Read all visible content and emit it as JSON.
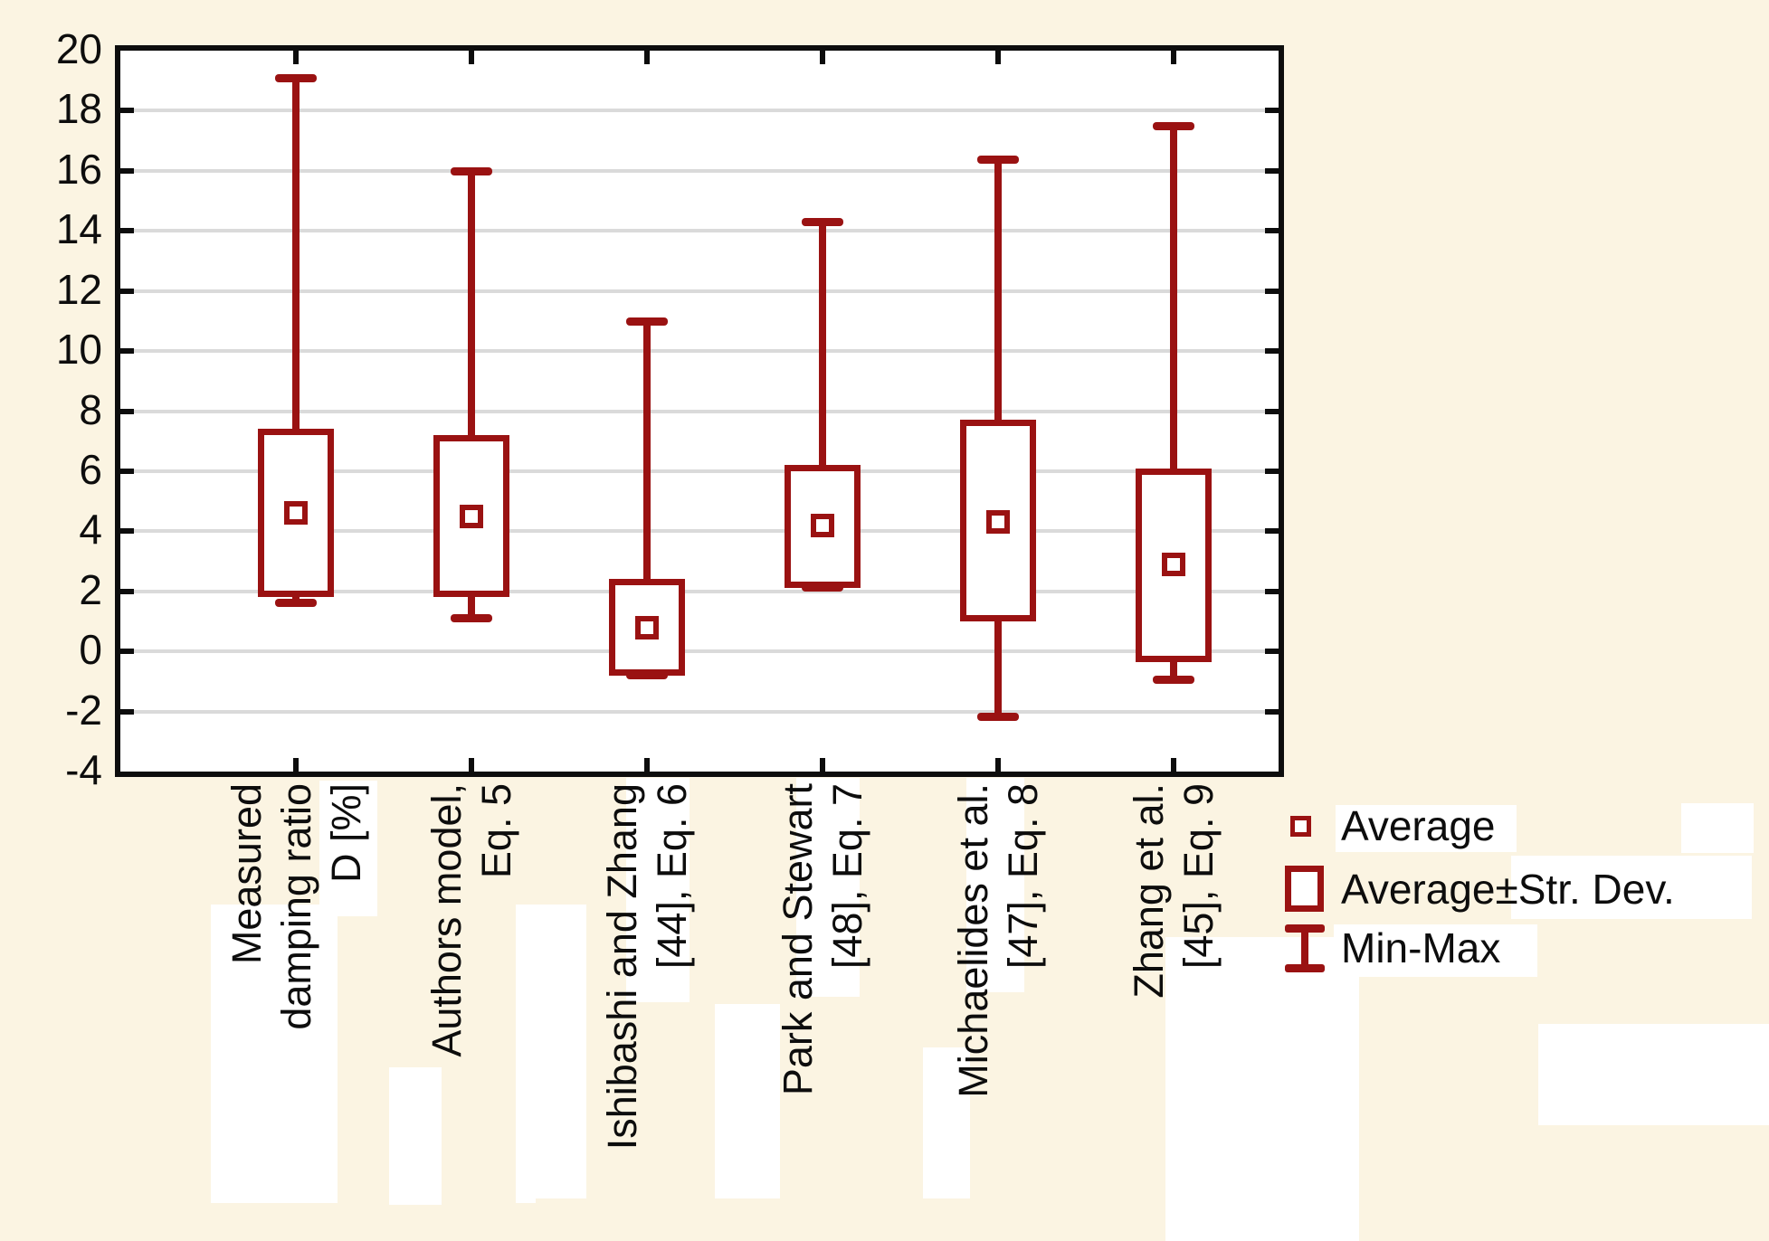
{
  "app": {
    "background_color": "#FBF4E2",
    "plot_background_color": "#FFFFFF",
    "accent_color": "#9A1212",
    "grid_color": "#DADADA",
    "frame_color": "#0D0D0D",
    "text_color": "#0D0D0D"
  },
  "chart_data": {
    "type": "box",
    "title": "",
    "xlabel": "",
    "ylabel": "",
    "ylim": [
      -4,
      20
    ],
    "ytick_step": 2,
    "ytick_labels": [
      "20",
      "18",
      "16",
      "14",
      "12",
      "10",
      "8",
      "6",
      "4",
      "2",
      "0",
      "-2",
      "-4"
    ],
    "grid": "horizontal",
    "legend_position": "bottom-right",
    "categories": [
      [
        "Measured",
        "damping ratio",
        "D [%]"
      ],
      [
        "Authors model,",
        "Eq. 5"
      ],
      [
        "Ishibashi and Zhang",
        "[44], Eq. 6"
      ],
      [
        "Park and Stewart",
        "[48], Eq. 7"
      ],
      [
        "Michaelides et al.",
        "[47], Eq. 8"
      ],
      [
        "Zhang et al.",
        "[45], Eq. 9"
      ]
    ],
    "series": [
      {
        "name": "Measured damping ratio D [%]",
        "average": 4.6,
        "box_low": 1.8,
        "box_high": 7.4,
        "min": 1.6,
        "max": 19.1
      },
      {
        "name": "Authors model, Eq. 5",
        "average": 4.5,
        "box_low": 1.8,
        "box_high": 7.2,
        "min": 1.1,
        "max": 16.0
      },
      {
        "name": "Ishibashi and Zhang [44], Eq. 6",
        "average": 0.8,
        "box_low": -0.8,
        "box_high": 2.4,
        "min": -0.8,
        "max": 11.0
      },
      {
        "name": "Park and Stewart [48], Eq. 7",
        "average": 4.2,
        "box_low": 2.1,
        "box_high": 6.2,
        "min": 2.1,
        "max": 14.3
      },
      {
        "name": "Michaelides et al. [47], Eq. 8",
        "average": 4.3,
        "box_low": 1.0,
        "box_high": 7.7,
        "min": -2.2,
        "max": 16.4
      },
      {
        "name": "Zhang et al. [45], Eq. 9",
        "average": 2.9,
        "box_low": -0.35,
        "box_high": 6.1,
        "min": -0.95,
        "max": 17.5
      }
    ],
    "legend": [
      "Average",
      "Average±Str. Dev.",
      "Min-Max"
    ]
  }
}
